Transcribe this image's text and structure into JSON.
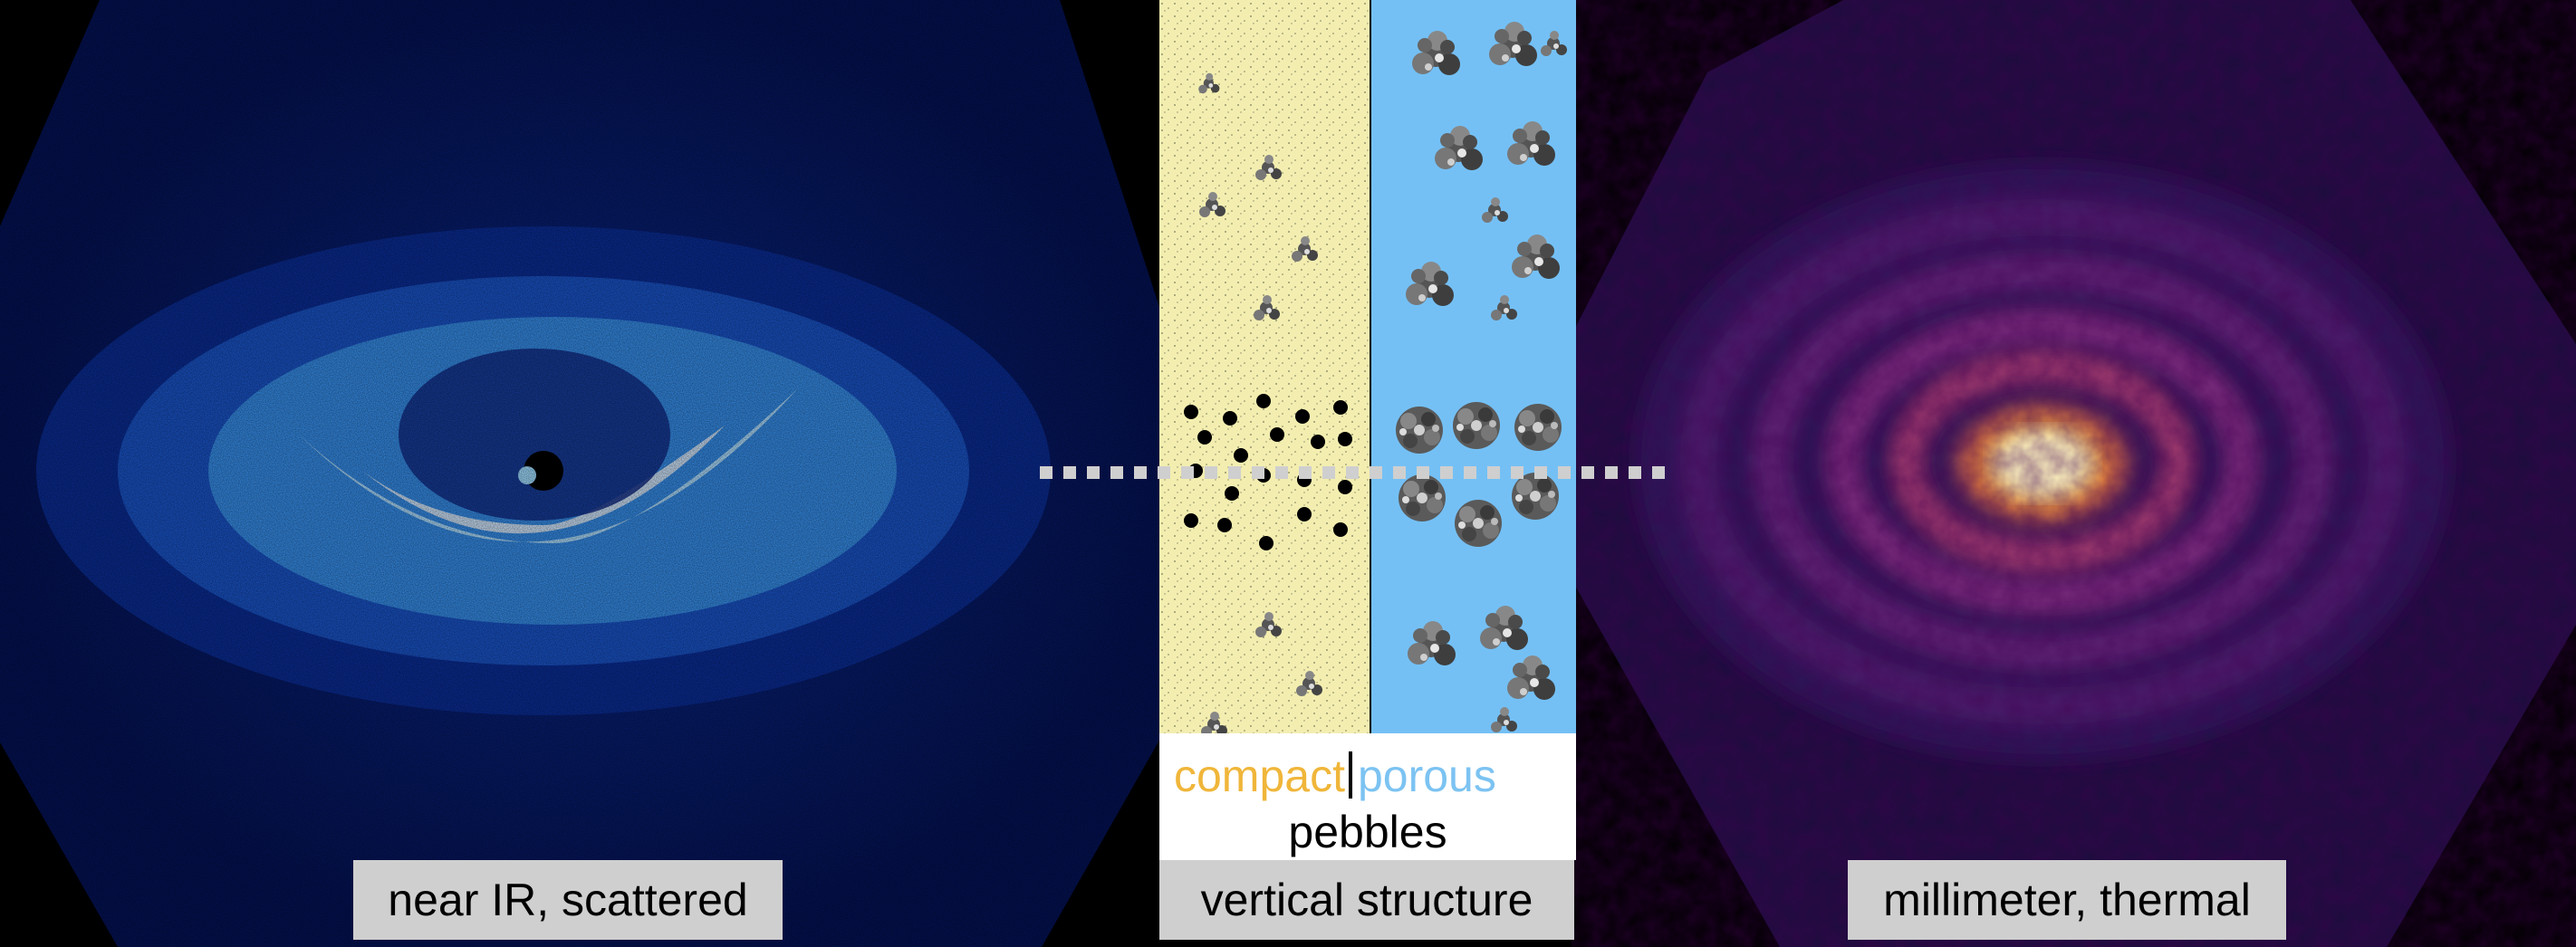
{
  "labels": {
    "left": "near IR, scattered",
    "center": "vertical structure",
    "right": "millimeter, thermal"
  },
  "legend": {
    "compact": "compact",
    "porous": "porous",
    "pebbles": "pebbles"
  },
  "colors": {
    "compact": "#f0b63a",
    "porous": "#7cc3f2",
    "sand": "#f3eeb0",
    "sky": "#74c0f5",
    "label_bg": "#cfcfcf"
  }
}
